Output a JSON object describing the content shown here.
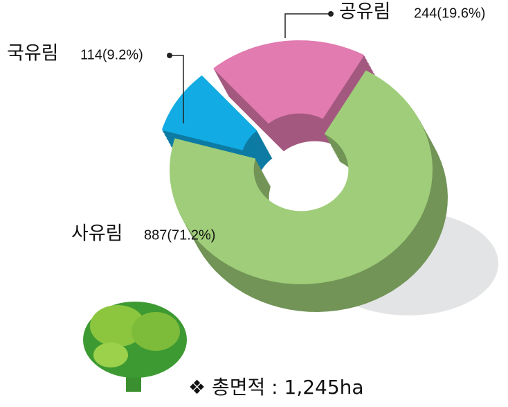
{
  "chart_data": {
    "type": "pie",
    "categories": [
      "국유림",
      "공유림",
      "사유림"
    ],
    "values": [
      114,
      244,
      887
    ],
    "value_labels": [
      "114(9.2%)",
      "244(19.6%)",
      "887(71.2%)"
    ],
    "colors": [
      "#12abe3",
      "#e27bb0",
      "#9fcd79"
    ],
    "note": "❖ 총면적 : 1,245ha"
  }
}
